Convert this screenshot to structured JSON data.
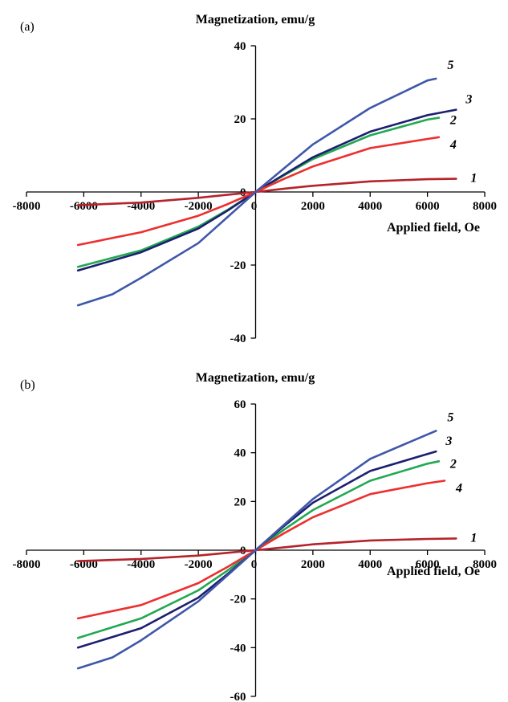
{
  "chart_data": [
    {
      "type": "line",
      "panel_label": "(a)",
      "ylabel": "Magnetization, emu/g",
      "xlabel": "Applied field, Oe",
      "xlim": [
        -8000,
        8000
      ],
      "ylim": [
        -40,
        40
      ],
      "x_ticks": [
        -8000,
        -6000,
        -4000,
        -2000,
        0,
        2000,
        4000,
        6000,
        8000
      ],
      "y_ticks": [
        -40,
        -20,
        0,
        20,
        40
      ],
      "x_tick_labels": [
        "-8000",
        "-6000",
        "-4000",
        "-2000",
        "0",
        "2000",
        "4000",
        "6000",
        "8000"
      ],
      "y_tick_labels": [
        "-40",
        "-20",
        "0",
        "20",
        "40"
      ],
      "grid": false,
      "series": [
        {
          "name": "1",
          "color": "#b5232b",
          "x": [
            -6200,
            -4000,
            -2000,
            -1000,
            0,
            1000,
            2000,
            4000,
            6000,
            7000
          ],
          "y": [
            -3.6,
            -2.9,
            -1.6,
            -0.8,
            0,
            0.9,
            1.7,
            2.9,
            3.5,
            3.6
          ]
        },
        {
          "name": "2",
          "color": "#22a852",
          "x": [
            -6200,
            -4000,
            -2000,
            -1000,
            0,
            1000,
            2000,
            4000,
            6000,
            6400
          ],
          "y": [
            -20.5,
            -16.0,
            -9.5,
            -5.0,
            0,
            4.6,
            9.0,
            15.5,
            19.8,
            20.3
          ]
        },
        {
          "name": "3",
          "color": "#1c1f6e",
          "x": [
            -6200,
            -4000,
            -2000,
            -1000,
            0,
            1000,
            2000,
            4000,
            6000,
            7000
          ],
          "y": [
            -21.5,
            -16.5,
            -10.0,
            -5.2,
            0,
            4.8,
            9.5,
            16.5,
            21.0,
            22.5
          ]
        },
        {
          "name": "4",
          "color": "#ec2f2f",
          "x": [
            -6200,
            -4000,
            -2000,
            -1000,
            0,
            1000,
            2000,
            4000,
            6000,
            6400
          ],
          "y": [
            -14.5,
            -11.0,
            -6.5,
            -3.4,
            0,
            3.6,
            7.0,
            12.0,
            14.5,
            15.0
          ]
        },
        {
          "name": "5",
          "color": "#3f57a8",
          "x": [
            -6200,
            -5000,
            -4000,
            -2000,
            -1000,
            0,
            1000,
            2000,
            4000,
            6000,
            6300
          ],
          "y": [
            -31.0,
            -28.0,
            -23.5,
            -14.0,
            -7.0,
            0,
            6.5,
            13.0,
            23.0,
            30.5,
            31.0
          ]
        }
      ]
    },
    {
      "type": "line",
      "panel_label": "(b)",
      "ylabel": "Magnetization, emu/g",
      "xlabel": "Applied field, Oe",
      "xlim": [
        -8000,
        8000
      ],
      "ylim": [
        -60,
        60
      ],
      "x_ticks": [
        -8000,
        -6000,
        -4000,
        -2000,
        0,
        2000,
        4000,
        6000,
        8000
      ],
      "y_ticks": [
        -60,
        -40,
        -20,
        0,
        20,
        40,
        60
      ],
      "x_tick_labels": [
        "-8000",
        "-6000",
        "-4000",
        "-2000",
        "0",
        "2000",
        "4000",
        "6000",
        "8000"
      ],
      "y_tick_labels": [
        "-60",
        "-40",
        "-20",
        "0",
        "20",
        "40",
        "60"
      ],
      "grid": false,
      "series": [
        {
          "name": "1",
          "color": "#b5232b",
          "x": [
            -6200,
            -4000,
            -2000,
            -1000,
            0,
            1000,
            2000,
            4000,
            6000,
            7000
          ],
          "y": [
            -4.5,
            -3.6,
            -2.2,
            -1.1,
            0,
            1.2,
            2.4,
            4.0,
            4.6,
            4.8
          ]
        },
        {
          "name": "2",
          "color": "#22a852",
          "x": [
            -6200,
            -4000,
            -2000,
            -1000,
            0,
            1000,
            2000,
            4000,
            6000,
            6400
          ],
          "y": [
            -36.0,
            -28.0,
            -16.5,
            -8.5,
            0,
            8.5,
            16.5,
            28.5,
            35.5,
            36.5
          ]
        },
        {
          "name": "3",
          "color": "#1c1f6e",
          "x": [
            -6200,
            -4000,
            -2000,
            -1000,
            0,
            1000,
            2000,
            4000,
            6000,
            6300
          ],
          "y": [
            -40.0,
            -32.0,
            -19.5,
            -10.0,
            0,
            10.0,
            19.5,
            32.5,
            39.5,
            40.5
          ]
        },
        {
          "name": "4",
          "color": "#ec2f2f",
          "x": [
            -6200,
            -4000,
            -2000,
            -1000,
            0,
            1000,
            2000,
            4000,
            6000,
            6600
          ],
          "y": [
            -28.0,
            -22.5,
            -13.5,
            -7.0,
            0,
            7.0,
            13.5,
            23.0,
            27.5,
            28.5
          ]
        },
        {
          "name": "5",
          "color": "#3f57a8",
          "x": [
            -6200,
            -5000,
            -4000,
            -2000,
            -1000,
            0,
            1000,
            2000,
            4000,
            6000,
            6300
          ],
          "y": [
            -48.5,
            -44.0,
            -37.0,
            -21.0,
            -10.5,
            0,
            10.5,
            21.0,
            37.5,
            47.5,
            49.0
          ]
        }
      ]
    }
  ]
}
